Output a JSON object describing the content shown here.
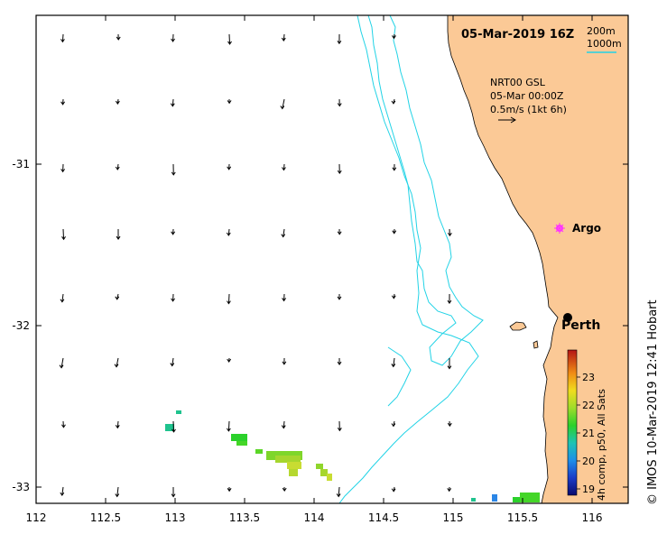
{
  "title": "05-Mar-2019 16Z",
  "contour_legend": {
    "line1": "200m",
    "line2": "1000m"
  },
  "current_legend": {
    "line1": "NRT00 GSL",
    "line2": "05-Mar 00:00Z",
    "line3": "0.5m/s (1kt 6h)"
  },
  "argo_label": "Argo",
  "city_label": "Perth",
  "credit": "© IMOS 10-Mar-2019 12:41 Hobart",
  "colorbar": {
    "label": "4h comp, p50, All Sats",
    "ticks": [
      "19",
      "20",
      "21",
      "22",
      "23"
    ]
  },
  "x_ticks": [
    "112",
    "112.5",
    "113",
    "113.5",
    "114",
    "114.5",
    "115",
    "115.5",
    "116"
  ],
  "y_ticks": [
    "-31",
    "-32",
    "-33"
  ],
  "colors": {
    "land": "#fbc996",
    "contour": "#22d3e6",
    "argo": "#ff33ff",
    "frame": "#000000"
  }
}
